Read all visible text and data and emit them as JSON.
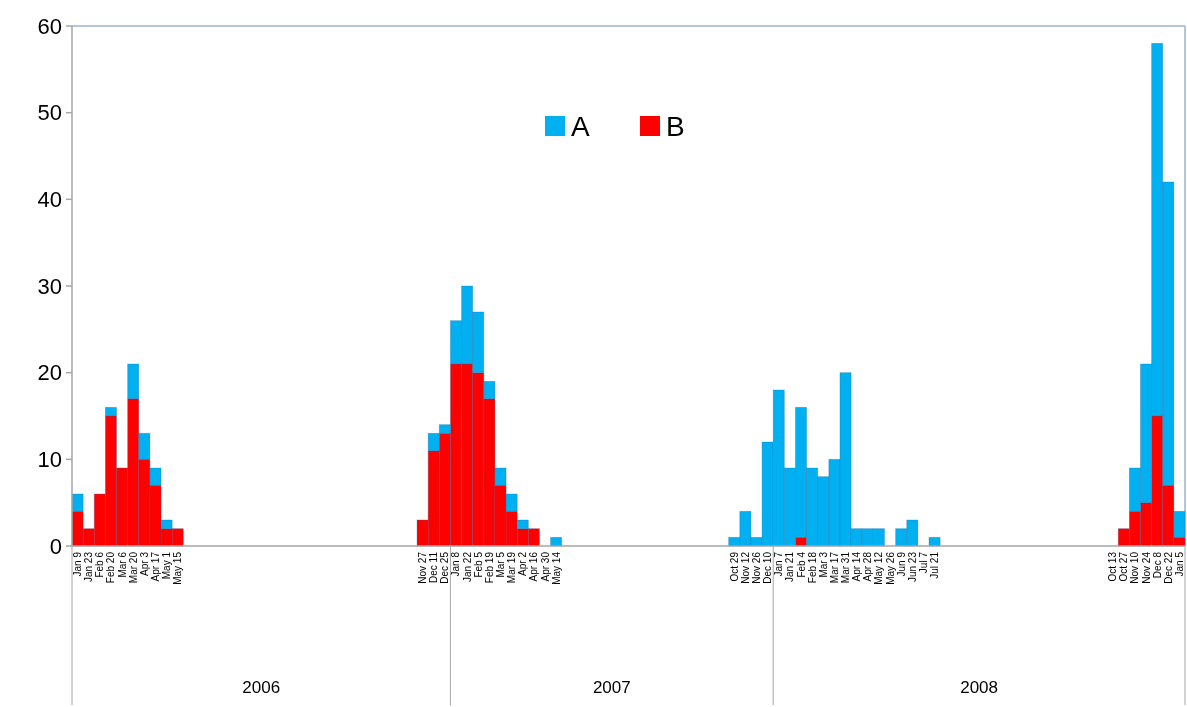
{
  "chart_data": {
    "type": "bar",
    "stacked": true,
    "categories": [
      "Jan 9",
      "Jan 23",
      "Feb 6",
      "Feb 20",
      "Mar 6",
      "Mar 20",
      "Apr 3",
      "Apr 17",
      "May 1",
      "May 15",
      null,
      null,
      null,
      null,
      null,
      null,
      null,
      null,
      null,
      null,
      null,
      null,
      null,
      null,
      null,
      null,
      null,
      null,
      null,
      null,
      null,
      "Nov 27",
      "Dec 11",
      "Dec 25",
      "Jan 8",
      "Jan 22",
      "Feb 5",
      "Feb 19",
      "Mar 5",
      "Mar 19",
      "Apr 2",
      "Apr 16",
      "Apr 30",
      "May 14",
      null,
      null,
      null,
      null,
      null,
      null,
      null,
      null,
      null,
      null,
      null,
      null,
      null,
      null,
      null,
      "Oct 29",
      "Nov 12",
      "Nov 26",
      "Dec 10",
      "Jan 7",
      "Jan 21",
      "Feb 4",
      "Feb 18",
      "Mar 3",
      "Mar 17",
      "Mar 31",
      "Apr 14",
      "Apr 28",
      "May 12",
      "May 26",
      "Jun 9",
      "Jun 23",
      "Jul 7",
      "Jul 21",
      null,
      null,
      null,
      null,
      null,
      null,
      null,
      null,
      null,
      null,
      null,
      null,
      null,
      null,
      null,
      "Oct 13",
      "Oct 27",
      "Nov 10",
      "Nov 24",
      "Dec 8",
      "Dec 22",
      "Jan 5"
    ],
    "series": [
      {
        "name": "B",
        "color": "#ff0000",
        "values": [
          4,
          2,
          6,
          15,
          9,
          17,
          10,
          7,
          2,
          2,
          null,
          null,
          null,
          null,
          null,
          null,
          null,
          null,
          null,
          null,
          null,
          null,
          null,
          null,
          null,
          null,
          null,
          null,
          null,
          null,
          null,
          3,
          11,
          13,
          21,
          21,
          20,
          17,
          7,
          4,
          2,
          2,
          null,
          null,
          null,
          null,
          null,
          null,
          null,
          null,
          null,
          null,
          null,
          null,
          null,
          null,
          null,
          null,
          null,
          null,
          null,
          null,
          null,
          null,
          null,
          1,
          null,
          null,
          null,
          null,
          null,
          null,
          null,
          null,
          null,
          null,
          null,
          null,
          null,
          null,
          null,
          null,
          null,
          null,
          null,
          null,
          null,
          null,
          null,
          null,
          null,
          null,
          null,
          null,
          2,
          4,
          5,
          15,
          7,
          1
        ]
      },
      {
        "name": "A",
        "color": "#00b0f0",
        "values": [
          2,
          null,
          null,
          1,
          null,
          4,
          3,
          2,
          1,
          null,
          null,
          null,
          null,
          null,
          null,
          null,
          null,
          null,
          null,
          null,
          null,
          null,
          null,
          null,
          null,
          null,
          null,
          null,
          null,
          null,
          null,
          null,
          2,
          1,
          5,
          9,
          7,
          2,
          2,
          2,
          1,
          null,
          null,
          1,
          null,
          null,
          null,
          null,
          null,
          null,
          null,
          null,
          null,
          null,
          null,
          null,
          null,
          null,
          null,
          1,
          4,
          1,
          12,
          18,
          9,
          15,
          9,
          8,
          10,
          20,
          2,
          2,
          2,
          null,
          2,
          3,
          null,
          1,
          null,
          null,
          null,
          null,
          null,
          null,
          null,
          null,
          null,
          null,
          null,
          null,
          null,
          null,
          null,
          null,
          null,
          5,
          16,
          43,
          35,
          3
        ]
      }
    ],
    "ylim": [
      0,
      60
    ],
    "yticks": [
      0,
      10,
      20,
      30,
      40,
      50,
      60
    ],
    "grid": false,
    "legend": "top",
    "annotations": [
      "2006",
      "2007",
      "2008"
    ]
  }
}
